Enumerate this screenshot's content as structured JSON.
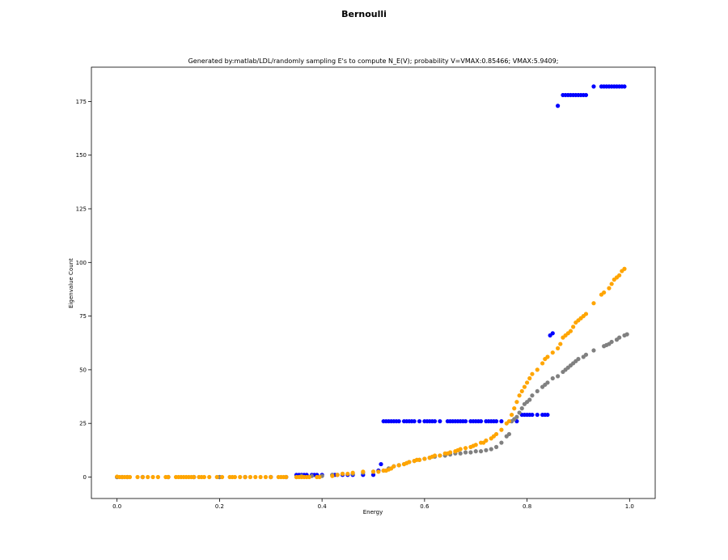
{
  "chart_data": {
    "type": "scatter",
    "suptitle": "Bernoulli",
    "title": "Generated by:matlab/LDL/randomly sampling E's to compute N_E(V); probability V=VMAX:0.85466; VMAX:5.9409;",
    "xlabel": "Energy",
    "ylabel": "Eigenvalue Count",
    "xlim": [
      -0.05,
      1.05
    ],
    "ylim": [
      -10,
      191
    ],
    "xticks": [
      0.0,
      0.2,
      0.4,
      0.6,
      0.8,
      1.0
    ],
    "xtick_labels": [
      "0.0",
      "0.2",
      "0.4",
      "0.6",
      "0.8",
      "1.0"
    ],
    "yticks": [
      0,
      25,
      50,
      75,
      100,
      125,
      150,
      175
    ],
    "ytick_labels": [
      "0",
      "25",
      "50",
      "75",
      "100",
      "125",
      "150",
      "175"
    ],
    "grid": false,
    "legend": "none",
    "series": [
      {
        "color": "#0000ff",
        "points": [
          [
            0.0,
            0
          ],
          [
            0.01,
            0
          ],
          [
            0.02,
            0
          ],
          [
            0.05,
            0
          ],
          [
            0.1,
            0
          ],
          [
            0.15,
            0
          ],
          [
            0.2,
            0
          ],
          [
            0.25,
            0
          ],
          [
            0.3,
            0
          ],
          [
            0.33,
            0
          ],
          [
            0.35,
            1
          ],
          [
            0.355,
            1
          ],
          [
            0.36,
            1
          ],
          [
            0.365,
            1
          ],
          [
            0.37,
            1
          ],
          [
            0.38,
            1
          ],
          [
            0.385,
            1
          ],
          [
            0.39,
            1
          ],
          [
            0.4,
            1
          ],
          [
            0.42,
            1
          ],
          [
            0.425,
            1
          ],
          [
            0.43,
            1
          ],
          [
            0.44,
            1
          ],
          [
            0.45,
            1
          ],
          [
            0.46,
            1
          ],
          [
            0.48,
            1
          ],
          [
            0.5,
            1
          ],
          [
            0.51,
            3
          ],
          [
            0.515,
            6
          ],
          [
            0.52,
            26
          ],
          [
            0.525,
            26
          ],
          [
            0.53,
            26
          ],
          [
            0.535,
            26
          ],
          [
            0.54,
            26
          ],
          [
            0.545,
            26
          ],
          [
            0.55,
            26
          ],
          [
            0.56,
            26
          ],
          [
            0.565,
            26
          ],
          [
            0.57,
            26
          ],
          [
            0.575,
            26
          ],
          [
            0.58,
            26
          ],
          [
            0.59,
            26
          ],
          [
            0.6,
            26
          ],
          [
            0.605,
            26
          ],
          [
            0.61,
            26
          ],
          [
            0.615,
            26
          ],
          [
            0.62,
            26
          ],
          [
            0.63,
            26
          ],
          [
            0.645,
            26
          ],
          [
            0.65,
            26
          ],
          [
            0.655,
            26
          ],
          [
            0.66,
            26
          ],
          [
            0.665,
            26
          ],
          [
            0.67,
            26
          ],
          [
            0.675,
            26
          ],
          [
            0.68,
            26
          ],
          [
            0.69,
            26
          ],
          [
            0.695,
            26
          ],
          [
            0.7,
            26
          ],
          [
            0.705,
            26
          ],
          [
            0.71,
            26
          ],
          [
            0.72,
            26
          ],
          [
            0.725,
            26
          ],
          [
            0.73,
            26
          ],
          [
            0.735,
            26
          ],
          [
            0.74,
            26
          ],
          [
            0.75,
            26
          ],
          [
            0.77,
            26
          ],
          [
            0.78,
            26
          ],
          [
            0.79,
            29
          ],
          [
            0.795,
            29
          ],
          [
            0.8,
            29
          ],
          [
            0.805,
            29
          ],
          [
            0.81,
            29
          ],
          [
            0.82,
            29
          ],
          [
            0.83,
            29
          ],
          [
            0.835,
            29
          ],
          [
            0.84,
            29
          ],
          [
            0.845,
            66
          ],
          [
            0.85,
            67
          ],
          [
            0.86,
            173
          ],
          [
            0.87,
            178
          ],
          [
            0.875,
            178
          ],
          [
            0.88,
            178
          ],
          [
            0.885,
            178
          ],
          [
            0.89,
            178
          ],
          [
            0.895,
            178
          ],
          [
            0.9,
            178
          ],
          [
            0.905,
            178
          ],
          [
            0.91,
            178
          ],
          [
            0.915,
            178
          ],
          [
            0.93,
            182
          ],
          [
            0.945,
            182
          ],
          [
            0.95,
            182
          ],
          [
            0.955,
            182
          ],
          [
            0.96,
            182
          ],
          [
            0.965,
            182
          ],
          [
            0.97,
            182
          ],
          [
            0.975,
            182
          ],
          [
            0.98,
            182
          ],
          [
            0.985,
            182
          ],
          [
            0.99,
            182
          ]
        ]
      },
      {
        "color": "#808080",
        "points": [
          [
            0.0,
            0
          ],
          [
            0.05,
            0
          ],
          [
            0.1,
            0
          ],
          [
            0.15,
            0
          ],
          [
            0.2,
            0
          ],
          [
            0.25,
            0
          ],
          [
            0.3,
            0
          ],
          [
            0.33,
            0
          ],
          [
            0.35,
            0
          ],
          [
            0.36,
            0.5
          ],
          [
            0.38,
            0.5
          ],
          [
            0.4,
            0.5
          ],
          [
            0.42,
            1
          ],
          [
            0.44,
            1.5
          ],
          [
            0.46,
            1.5
          ],
          [
            0.48,
            2
          ],
          [
            0.5,
            2.5
          ],
          [
            0.52,
            3
          ],
          [
            0.53,
            4
          ],
          [
            0.54,
            5
          ],
          [
            0.55,
            5.5
          ],
          [
            0.56,
            6
          ],
          [
            0.57,
            7
          ],
          [
            0.58,
            7.5
          ],
          [
            0.59,
            8
          ],
          [
            0.6,
            8.5
          ],
          [
            0.61,
            9
          ],
          [
            0.62,
            9.5
          ],
          [
            0.63,
            10
          ],
          [
            0.64,
            10
          ],
          [
            0.65,
            10.5
          ],
          [
            0.66,
            11
          ],
          [
            0.67,
            11
          ],
          [
            0.68,
            11.5
          ],
          [
            0.69,
            11.5
          ],
          [
            0.7,
            12
          ],
          [
            0.71,
            12
          ],
          [
            0.72,
            12.5
          ],
          [
            0.73,
            13
          ],
          [
            0.74,
            14
          ],
          [
            0.75,
            16
          ],
          [
            0.76,
            19
          ],
          [
            0.765,
            20
          ],
          [
            0.77,
            26
          ],
          [
            0.775,
            27
          ],
          [
            0.78,
            28
          ],
          [
            0.785,
            30
          ],
          [
            0.79,
            32
          ],
          [
            0.795,
            34
          ],
          [
            0.8,
            35
          ],
          [
            0.805,
            36
          ],
          [
            0.81,
            38
          ],
          [
            0.82,
            40
          ],
          [
            0.83,
            42
          ],
          [
            0.835,
            43
          ],
          [
            0.84,
            44
          ],
          [
            0.85,
            46
          ],
          [
            0.86,
            47
          ],
          [
            0.87,
            49
          ],
          [
            0.875,
            50
          ],
          [
            0.88,
            51
          ],
          [
            0.885,
            52
          ],
          [
            0.89,
            53
          ],
          [
            0.895,
            54
          ],
          [
            0.9,
            55
          ],
          [
            0.91,
            56
          ],
          [
            0.915,
            57
          ],
          [
            0.93,
            59
          ],
          [
            0.95,
            61
          ],
          [
            0.955,
            61.5
          ],
          [
            0.96,
            62
          ],
          [
            0.965,
            63
          ],
          [
            0.975,
            64
          ],
          [
            0.98,
            65
          ],
          [
            0.99,
            66
          ],
          [
            0.995,
            66.5
          ]
        ]
      },
      {
        "color": "#ffa500",
        "points": [
          [
            0.0,
            0.2
          ],
          [
            0.005,
            0
          ],
          [
            0.01,
            0
          ],
          [
            0.015,
            0
          ],
          [
            0.02,
            0
          ],
          [
            0.025,
            0
          ],
          [
            0.04,
            0
          ],
          [
            0.05,
            0
          ],
          [
            0.06,
            0
          ],
          [
            0.07,
            0
          ],
          [
            0.08,
            0
          ],
          [
            0.095,
            0
          ],
          [
            0.1,
            0
          ],
          [
            0.115,
            0
          ],
          [
            0.12,
            0
          ],
          [
            0.125,
            0
          ],
          [
            0.13,
            0
          ],
          [
            0.135,
            0
          ],
          [
            0.14,
            0
          ],
          [
            0.145,
            0
          ],
          [
            0.15,
            0
          ],
          [
            0.16,
            0
          ],
          [
            0.165,
            0
          ],
          [
            0.17,
            0
          ],
          [
            0.18,
            0
          ],
          [
            0.195,
            0
          ],
          [
            0.205,
            0
          ],
          [
            0.22,
            0
          ],
          [
            0.225,
            0
          ],
          [
            0.23,
            0
          ],
          [
            0.24,
            0
          ],
          [
            0.25,
            0
          ],
          [
            0.26,
            0
          ],
          [
            0.27,
            0
          ],
          [
            0.28,
            0
          ],
          [
            0.29,
            0
          ],
          [
            0.3,
            0
          ],
          [
            0.315,
            0
          ],
          [
            0.32,
            0
          ],
          [
            0.325,
            0
          ],
          [
            0.33,
            0
          ],
          [
            0.35,
            0
          ],
          [
            0.355,
            0
          ],
          [
            0.36,
            0
          ],
          [
            0.365,
            0
          ],
          [
            0.37,
            0
          ],
          [
            0.375,
            0
          ],
          [
            0.39,
            0
          ],
          [
            0.395,
            0
          ],
          [
            0.42,
            0.5
          ],
          [
            0.43,
            1
          ],
          [
            0.44,
            1.5
          ],
          [
            0.45,
            1.5
          ],
          [
            0.46,
            2
          ],
          [
            0.48,
            2.5
          ],
          [
            0.5,
            2.5
          ],
          [
            0.51,
            2.5
          ],
          [
            0.52,
            3
          ],
          [
            0.525,
            3
          ],
          [
            0.53,
            3.5
          ],
          [
            0.535,
            4
          ],
          [
            0.54,
            5
          ],
          [
            0.55,
            5.5
          ],
          [
            0.56,
            6
          ],
          [
            0.565,
            6.5
          ],
          [
            0.57,
            7
          ],
          [
            0.58,
            7.5
          ],
          [
            0.585,
            8
          ],
          [
            0.59,
            8
          ],
          [
            0.6,
            8.5
          ],
          [
            0.61,
            9
          ],
          [
            0.615,
            9.5
          ],
          [
            0.62,
            10
          ],
          [
            0.63,
            10
          ],
          [
            0.64,
            11
          ],
          [
            0.645,
            11
          ],
          [
            0.65,
            11.5
          ],
          [
            0.66,
            12
          ],
          [
            0.665,
            12.5
          ],
          [
            0.67,
            13
          ],
          [
            0.68,
            13.5
          ],
          [
            0.69,
            14
          ],
          [
            0.695,
            14.5
          ],
          [
            0.7,
            15
          ],
          [
            0.71,
            16
          ],
          [
            0.715,
            16
          ],
          [
            0.72,
            17
          ],
          [
            0.73,
            18
          ],
          [
            0.735,
            19
          ],
          [
            0.74,
            20
          ],
          [
            0.75,
            22
          ],
          [
            0.76,
            25
          ],
          [
            0.765,
            26
          ],
          [
            0.77,
            29
          ],
          [
            0.775,
            32
          ],
          [
            0.78,
            35
          ],
          [
            0.785,
            38
          ],
          [
            0.79,
            40
          ],
          [
            0.795,
            42
          ],
          [
            0.8,
            44
          ],
          [
            0.805,
            46
          ],
          [
            0.81,
            48
          ],
          [
            0.82,
            50
          ],
          [
            0.83,
            53
          ],
          [
            0.835,
            55
          ],
          [
            0.84,
            56
          ],
          [
            0.85,
            58
          ],
          [
            0.86,
            60
          ],
          [
            0.865,
            62
          ],
          [
            0.87,
            65
          ],
          [
            0.875,
            66
          ],
          [
            0.88,
            67
          ],
          [
            0.885,
            68
          ],
          [
            0.89,
            70
          ],
          [
            0.895,
            72
          ],
          [
            0.9,
            73
          ],
          [
            0.905,
            74
          ],
          [
            0.91,
            75
          ],
          [
            0.915,
            76
          ],
          [
            0.93,
            81
          ],
          [
            0.945,
            85
          ],
          [
            0.95,
            86
          ],
          [
            0.96,
            88
          ],
          [
            0.965,
            90
          ],
          [
            0.97,
            92
          ],
          [
            0.975,
            93
          ],
          [
            0.98,
            94
          ],
          [
            0.985,
            96
          ],
          [
            0.99,
            97
          ]
        ]
      }
    ]
  }
}
